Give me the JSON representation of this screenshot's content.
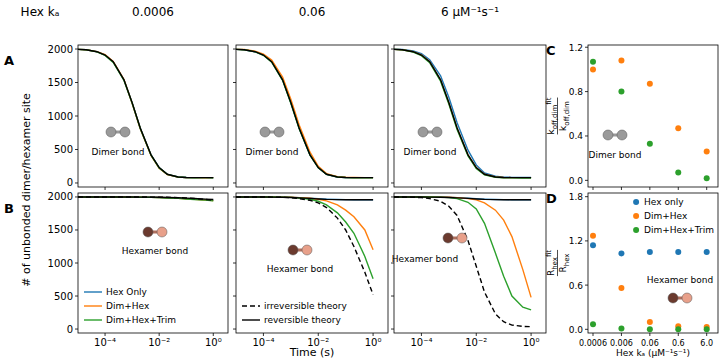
{
  "figure": {
    "header": "Hex kₐ",
    "y_label": "# of unbonded dimer/hexamer site"
  },
  "chart_data": [
    {
      "type": "line",
      "panel_label": "A",
      "title": "0.0006",
      "annotation": "Dimer bond",
      "log": "x",
      "xlim": [
        1e-05,
        3.5
      ],
      "ylim": [
        -60,
        2060
      ],
      "xticks": [
        0.0001,
        0.01,
        1
      ],
      "yticks": [
        0,
        500,
        1000,
        1500,
        2000
      ],
      "tick_labels": "y",
      "x": [
        1e-05,
        2e-05,
        5e-05,
        0.0001,
        0.0002,
        0.0005,
        0.001,
        0.002,
        0.005,
        0.01,
        0.02,
        0.05,
        0.1,
        0.2,
        0.5,
        1
      ],
      "series": [
        {
          "name": "Hex Only",
          "color": "#1f77b4",
          "line_style": "solid",
          "values": [
            1995,
            1990,
            1961,
            1912,
            1812,
            1542,
            1198,
            818,
            418,
            228,
            129,
            90,
            82,
            80,
            80,
            79
          ]
        },
        {
          "name": "Dim+Hex",
          "color": "#ff7f0e",
          "line_style": "solid",
          "values": [
            1995,
            1990,
            1962,
            1915,
            1815,
            1545,
            1190,
            810,
            410,
            220,
            125,
            88,
            80,
            80,
            78,
            80
          ]
        },
        {
          "name": "Dim+Hex+Trim",
          "color": "#2ca02c",
          "line_style": "solid",
          "values": [
            1995,
            1988,
            1958,
            1905,
            1800,
            1530,
            1195,
            815,
            415,
            225,
            128,
            90,
            82,
            79,
            80,
            79
          ]
        },
        {
          "name": "reversible theory",
          "color": "#000000",
          "line_style": "solid",
          "values": [
            1995,
            1990,
            1960,
            1910,
            1810,
            1540,
            1200,
            820,
            420,
            230,
            130,
            90,
            82,
            80,
            80,
            80
          ]
        }
      ]
    },
    {
      "type": "line",
      "title": "0.06",
      "annotation": "Dimer bond",
      "log": "x",
      "xlim": [
        1e-05,
        3.5
      ],
      "ylim": [
        -60,
        2060
      ],
      "xticks": [
        0.0001,
        0.01,
        1
      ],
      "yticks": [
        0,
        500,
        1000,
        1500,
        2000
      ],
      "tick_labels": false,
      "x": [
        1e-05,
        2e-05,
        5e-05,
        0.0001,
        0.0002,
        0.0005,
        0.001,
        0.002,
        0.005,
        0.01,
        0.02,
        0.05,
        0.1,
        0.2,
        0.5,
        1
      ],
      "series": [
        {
          "name": "Hex Only",
          "color": "#1f77b4",
          "line_style": "solid",
          "values": [
            1995,
            1990,
            1960,
            1910,
            1810,
            1540,
            1200,
            820,
            420,
            230,
            130,
            90,
            82,
            80,
            80,
            80
          ]
        },
        {
          "name": "Dim+Hex",
          "color": "#ff7f0e",
          "line_style": "solid",
          "values": [
            1995,
            1992,
            1968,
            1925,
            1835,
            1580,
            1250,
            870,
            460,
            250,
            140,
            95,
            85,
            82,
            80,
            80
          ]
        },
        {
          "name": "Dim+Hex+Trim",
          "color": "#2ca02c",
          "line_style": "solid",
          "values": [
            1995,
            1989,
            1957,
            1906,
            1803,
            1532,
            1190,
            812,
            415,
            226,
            128,
            89,
            81,
            79,
            79,
            79
          ]
        },
        {
          "name": "reversible theory",
          "color": "#000000",
          "line_style": "solid",
          "values": [
            1995,
            1990,
            1960,
            1910,
            1810,
            1540,
            1200,
            820,
            420,
            230,
            130,
            90,
            82,
            80,
            80,
            80
          ]
        }
      ]
    },
    {
      "type": "line",
      "title": "6 μM⁻¹s⁻¹",
      "annotation": "Dimer bond",
      "log": "x",
      "xlim": [
        1e-05,
        3.5
      ],
      "ylim": [
        -60,
        2060
      ],
      "xticks": [
        0.0001,
        0.01,
        1
      ],
      "yticks": [
        0,
        500,
        1000,
        1500,
        2000
      ],
      "tick_labels": false,
      "x": [
        1e-05,
        2e-05,
        5e-05,
        0.0001,
        0.0002,
        0.0005,
        0.001,
        0.002,
        0.005,
        0.01,
        0.02,
        0.05,
        0.1,
        0.2,
        0.5,
        1
      ],
      "series": [
        {
          "name": "Hex Only",
          "color": "#1f77b4",
          "line_style": "solid",
          "values": [
            1996,
            1993,
            1970,
            1930,
            1840,
            1600,
            1280,
            900,
            490,
            270,
            150,
            100,
            88,
            84,
            82,
            82
          ]
        },
        {
          "name": "Dim+Hex",
          "color": "#ff7f0e",
          "line_style": "solid",
          "values": [
            1995,
            1990,
            1962,
            1912,
            1810,
            1535,
            1195,
            815,
            418,
            228,
            130,
            90,
            82,
            80,
            80,
            80
          ]
        },
        {
          "name": "Dim+Hex+Trim",
          "color": "#2ca02c",
          "line_style": "solid",
          "values": [
            1994,
            1988,
            1955,
            1900,
            1795,
            1520,
            1180,
            800,
            405,
            215,
            120,
            85,
            78,
            76,
            75,
            75
          ]
        },
        {
          "name": "reversible theory",
          "color": "#000000",
          "line_style": "solid",
          "values": [
            1995,
            1990,
            1960,
            1910,
            1810,
            1540,
            1200,
            820,
            420,
            230,
            130,
            90,
            82,
            80,
            80,
            80
          ]
        }
      ]
    },
    {
      "type": "line",
      "panel_label": "B",
      "annotation": "Hexamer bond",
      "log": "x",
      "legend": "lower left",
      "xlim": [
        1e-05,
        3.5
      ],
      "ylim": [
        -60,
        2060
      ],
      "xticks": [
        {
          "value": 0.0001,
          "label": "10⁻⁴"
        },
        {
          "value": 0.01,
          "label": "10⁻²"
        },
        {
          "value": 1,
          "label": "10⁰"
        }
      ],
      "yticks": [
        0,
        500,
        1000,
        1500,
        2000
      ],
      "tick_labels": true,
      "x": [
        1e-05,
        2e-05,
        5e-05,
        0.0001,
        0.0002,
        0.0005,
        0.001,
        0.002,
        0.005,
        0.01,
        0.02,
        0.05,
        0.1,
        0.2,
        0.5,
        1
      ],
      "series": [
        {
          "name": "Hex Only",
          "color": "#1f77b4",
          "line_style": "solid",
          "values": [
            2000,
            2000,
            2000,
            2000,
            1999,
            1999,
            1998,
            1997,
            1995,
            1992,
            1988,
            1982,
            1975,
            1968,
            1958,
            1950
          ]
        },
        {
          "name": "Dim+Hex",
          "color": "#ff7f0e",
          "line_style": "solid",
          "values": [
            2000,
            2000,
            2000,
            2000,
            1999,
            1999,
            1998,
            1996,
            1994,
            1991,
            1987,
            1980,
            1973,
            1965,
            1955,
            1945
          ]
        },
        {
          "name": "Dim+Hex+Trim",
          "color": "#2ca02c",
          "line_style": "solid",
          "values": [
            2000,
            2000,
            2000,
            2000,
            1999,
            1998,
            1997,
            1996,
            1993,
            1990,
            1985,
            1978,
            1970,
            1962,
            1952,
            1940
          ]
        },
        {
          "name": "irreversible theory",
          "color": "#000000",
          "line_style": "dashed",
          "values": [
            2000,
            2000,
            2000,
            2000,
            2000,
            2000,
            2000,
            1999,
            1998,
            1997,
            1995,
            1990,
            1984,
            1976,
            1962,
            1950
          ]
        },
        {
          "name": "reversible theory",
          "color": "#000000",
          "line_style": "solid",
          "values": [
            2000,
            2000,
            2000,
            2000,
            2000,
            1999,
            1999,
            1998,
            1997,
            1995,
            1992,
            1987,
            1982,
            1976,
            1968,
            1962
          ]
        }
      ]
    },
    {
      "type": "line",
      "annotation": "Hexamer bond",
      "log": "x",
      "legend": "lower left",
      "x_label": "Time (s)",
      "xlim": [
        1e-05,
        3.5
      ],
      "ylim": [
        -60,
        2060
      ],
      "xticks": [
        {
          "value": 0.0001,
          "label": "10⁻⁴"
        },
        {
          "value": 0.01,
          "label": "10⁻²"
        },
        {
          "value": 1,
          "label": "10⁰"
        }
      ],
      "yticks": [
        0,
        500,
        1000,
        1500,
        2000
      ],
      "tick_labels": "x",
      "x": [
        1e-05,
        2e-05,
        5e-05,
        0.0001,
        0.0002,
        0.0005,
        0.001,
        0.002,
        0.005,
        0.01,
        0.02,
        0.05,
        0.1,
        0.2,
        0.5,
        1
      ],
      "series": [
        {
          "name": "Hex Only",
          "color": "#1f77b4",
          "line_style": "solid",
          "values": [
            2000,
            2000,
            2000,
            2000,
            1999,
            1998,
            1995,
            1990,
            1982,
            1975,
            1968,
            1962,
            1960,
            1958,
            1958,
            1958
          ]
        },
        {
          "name": "Dim+Hex",
          "color": "#ff7f0e",
          "line_style": "solid",
          "values": [
            2000,
            2000,
            2000,
            2000,
            1999,
            1998,
            1995,
            1990,
            1980,
            1965,
            1940,
            1880,
            1800,
            1700,
            1500,
            1200
          ]
        },
        {
          "name": "Dim+Hex+Trim",
          "color": "#2ca02c",
          "line_style": "solid",
          "values": [
            2000,
            2000,
            2000,
            2000,
            1999,
            1997,
            1993,
            1985,
            1965,
            1935,
            1880,
            1760,
            1620,
            1450,
            1100,
            760
          ]
        },
        {
          "name": "irreversible theory",
          "color": "#000000",
          "line_style": "dashed",
          "values": [
            2000,
            2000,
            2000,
            2000,
            1998,
            1995,
            1988,
            1975,
            1950,
            1910,
            1840,
            1680,
            1500,
            1250,
            860,
            520
          ]
        },
        {
          "name": "reversible theory",
          "color": "#000000",
          "line_style": "solid",
          "values": [
            2000,
            2000,
            2000,
            1999,
            1998,
            1996,
            1992,
            1986,
            1978,
            1970,
            1964,
            1960,
            1958,
            1958,
            1958,
            1958
          ]
        }
      ]
    },
    {
      "type": "line",
      "annotation": "Hexamer bond",
      "log": "x",
      "xlim": [
        1e-05,
        3.5
      ],
      "ylim": [
        -60,
        2060
      ],
      "xticks": [
        {
          "value": 0.0001,
          "label": "10⁻⁴"
        },
        {
          "value": 0.01,
          "label": "10⁻²"
        },
        {
          "value": 1,
          "label": "10⁰"
        }
      ],
      "yticks": [
        0,
        500,
        1000,
        1500,
        2000
      ],
      "tick_labels": "x",
      "x": [
        1e-05,
        2e-05,
        5e-05,
        0.0001,
        0.0002,
        0.0005,
        0.001,
        0.002,
        0.005,
        0.01,
        0.02,
        0.05,
        0.1,
        0.2,
        0.5,
        1
      ],
      "series": [
        {
          "name": "Hex Only",
          "color": "#1f77b4",
          "line_style": "solid",
          "values": [
            2000,
            2000,
            2000,
            2000,
            1999,
            1998,
            1995,
            1990,
            1982,
            1975,
            1968,
            1962,
            1960,
            1958,
            1958,
            1958
          ]
        },
        {
          "name": "Dim+Hex",
          "color": "#ff7f0e",
          "line_style": "solid",
          "values": [
            2000,
            2000,
            2000,
            2000,
            1999,
            1998,
            1995,
            1990,
            1975,
            1955,
            1910,
            1800,
            1650,
            1400,
            900,
            480
          ]
        },
        {
          "name": "Dim+Hex+Trim",
          "color": "#2ca02c",
          "line_style": "solid",
          "values": [
            2000,
            2000,
            2000,
            2000,
            1999,
            1997,
            1990,
            1975,
            1920,
            1820,
            1600,
            1150,
            800,
            500,
            330,
            290
          ]
        },
        {
          "name": "irreversible theory",
          "color": "#000000",
          "line_style": "dashed",
          "values": [
            2000,
            1999,
            1996,
            1990,
            1975,
            1935,
            1860,
            1720,
            1340,
            950,
            560,
            230,
            110,
            60,
            40,
            35
          ]
        },
        {
          "name": "reversible theory",
          "color": "#000000",
          "line_style": "solid",
          "values": [
            2000,
            2000,
            2000,
            1999,
            1998,
            1996,
            1992,
            1986,
            1978,
            1970,
            1964,
            1960,
            1958,
            1958,
            1958,
            1958
          ]
        }
      ]
    },
    {
      "type": "scatter",
      "panel_label": "C",
      "annotation": "Dimer bond",
      "log": "x",
      "y_label": {
        "numerator": "k",
        "numerator_sub": "off,dim",
        "numerator_sup": "fit",
        "denominator": "k",
        "denominator_sub": "off,dim"
      },
      "xlim": [
        0.0004,
        15
      ],
      "ylim": [
        -0.06,
        1.22
      ],
      "xticks": [
        0.0006,
        0.006,
        0.06,
        0.6,
        6
      ],
      "yticks": [
        {
          "value": 0,
          "label": "0.0"
        },
        0.4,
        0.8,
        1.2
      ],
      "tick_labels": "y",
      "x": [
        0.0006,
        0.006,
        0.06,
        0.6,
        6
      ],
      "series": [
        {
          "name": "Dim+Hex",
          "color": "#ff7f0e",
          "marker": "circle",
          "values": [
            1.0,
            1.08,
            0.87,
            0.47,
            0.26
          ]
        },
        {
          "name": "Dim+Hex+Trim",
          "color": "#2ca02c",
          "marker": "circle",
          "values": [
            1.07,
            0.8,
            0.33,
            0.07,
            0.02
          ]
        }
      ]
    },
    {
      "type": "scatter",
      "panel_label": "D",
      "annotation": "Hexamer bond",
      "log": "x",
      "legend": "upper right",
      "x_label": "Hex kₐ (μM⁻¹s⁻¹)",
      "y_label": {
        "numerator": "R",
        "numerator_sub": "hex",
        "numerator_sup": "fit",
        "denominator": "R",
        "denominator_sub": "hex"
      },
      "xlim": [
        0.0004,
        15
      ],
      "ylim": [
        -0.05,
        1.85
      ],
      "xticks": [
        0.0006,
        0.006,
        0.06,
        0.6,
        {
          "value": 6,
          "label": "6.0"
        }
      ],
      "yticks": [
        {
          "value": 0,
          "label": "0.0"
        },
        0.6,
        1.2,
        1.8
      ],
      "tick_labels": true,
      "x": [
        0.0006,
        0.006,
        0.06,
        0.6,
        6
      ],
      "series": [
        {
          "name": "Hex only",
          "color": "#1f77b4",
          "marker": "circle",
          "values": [
            1.14,
            1.03,
            1.05,
            1.05,
            1.05
          ]
        },
        {
          "name": "Dim+Hex",
          "color": "#ff7f0e",
          "marker": "circle",
          "values": [
            1.27,
            0.56,
            0.1,
            0.04,
            0.03
          ]
        },
        {
          "name": "Dim+Hex+Trim",
          "color": "#2ca02c",
          "marker": "circle",
          "values": [
            0.07,
            0.01,
            0.0,
            0.0,
            0.0
          ]
        }
      ]
    }
  ]
}
